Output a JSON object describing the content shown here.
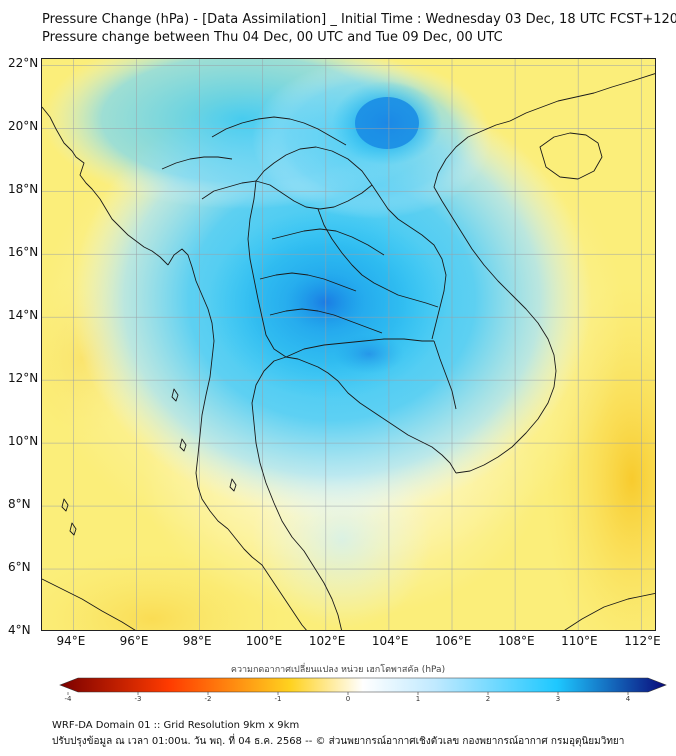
{
  "title": {
    "line1": "Pressure Change (hPa) - [Data Assimilation] _ Initial Time : Wednesday 03 Dec, 18 UTC FCST+120",
    "line2": "Pressure change between Thu 04 Dec, 00 UTC and Tue 09 Dec, 00 UTC"
  },
  "map": {
    "lat_labels": [
      "22°N",
      "20°N",
      "18°N",
      "16°N",
      "14°N",
      "12°N",
      "10°N",
      "8°N",
      "6°N",
      "4°N"
    ],
    "lon_labels": [
      "94°E",
      "96°E",
      "98°E",
      "100°E",
      "102°E",
      "104°E",
      "106°E",
      "108°E",
      "110°E",
      "112°E"
    ],
    "lat_values": [
      22,
      20,
      18,
      16,
      14,
      12,
      10,
      8,
      6,
      4
    ],
    "lon_values": [
      94,
      96,
      98,
      100,
      102,
      104,
      106,
      108,
      110,
      112
    ],
    "extent": {
      "lon_min": 93.0,
      "lon_max": 112.5,
      "lat_min": 4.0,
      "lat_max": 22.2
    },
    "colors": {
      "land_outline": "#1a1a1a",
      "gridline": "#9aa0a6"
    }
  },
  "colorbar": {
    "title": "ความกดอากาศเปลี่ยนแปลง หน่วย เฮกโตพาสคัล (hPa)",
    "ticks": [
      "-4",
      "-3",
      "-2",
      "-1",
      "0",
      "1",
      "2",
      "3",
      "4"
    ],
    "tick_values": [
      -4,
      -3,
      -2,
      -1,
      0,
      1,
      2,
      3,
      4
    ],
    "range": [
      -4,
      4
    ],
    "colors": {
      "min": "#7a0000",
      "neg_mid": "#ff3b00",
      "neg_low": "#ffd21f",
      "zero": "#ffffff",
      "pos_low": "#bfe9ff",
      "pos_mid": "#1ec8ff",
      "max": "#0a0a7a"
    }
  },
  "footer": {
    "line1": "WRF-DA Domain 01 :: Grid Resolution 9km x 9km",
    "line2": "ปรับปรุงข้อมูล ณ เวลา 01:00น. วัน พฤ. ที่ 04 ธ.ค. 2568 -- © ส่วนพยากรณ์อากาศเชิงตัวเลข กองพยากรณ์อากาศ กรมอุตุนิยมวิทยา"
  }
}
